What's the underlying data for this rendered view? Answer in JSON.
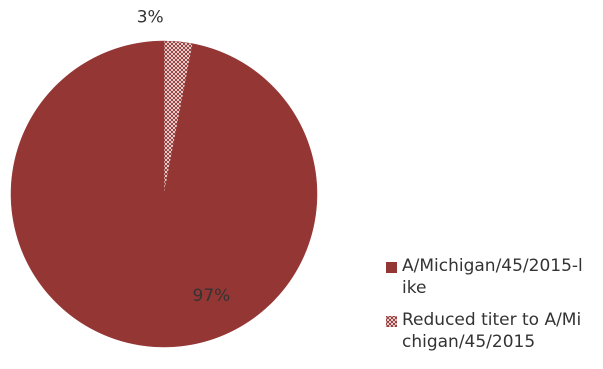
{
  "chart_data": {
    "type": "pie",
    "title": "",
    "slices": [
      {
        "name": "A/Michigan/45/2015-like",
        "value": 97,
        "label": "97%",
        "color": "#943634",
        "pattern": "solid"
      },
      {
        "name": "Reduced titer to A/Michigan/45/2015",
        "value": 3,
        "label": "3%",
        "color": "#943634",
        "pattern": "crosshatch"
      }
    ],
    "legend_position": "bottom-right"
  }
}
